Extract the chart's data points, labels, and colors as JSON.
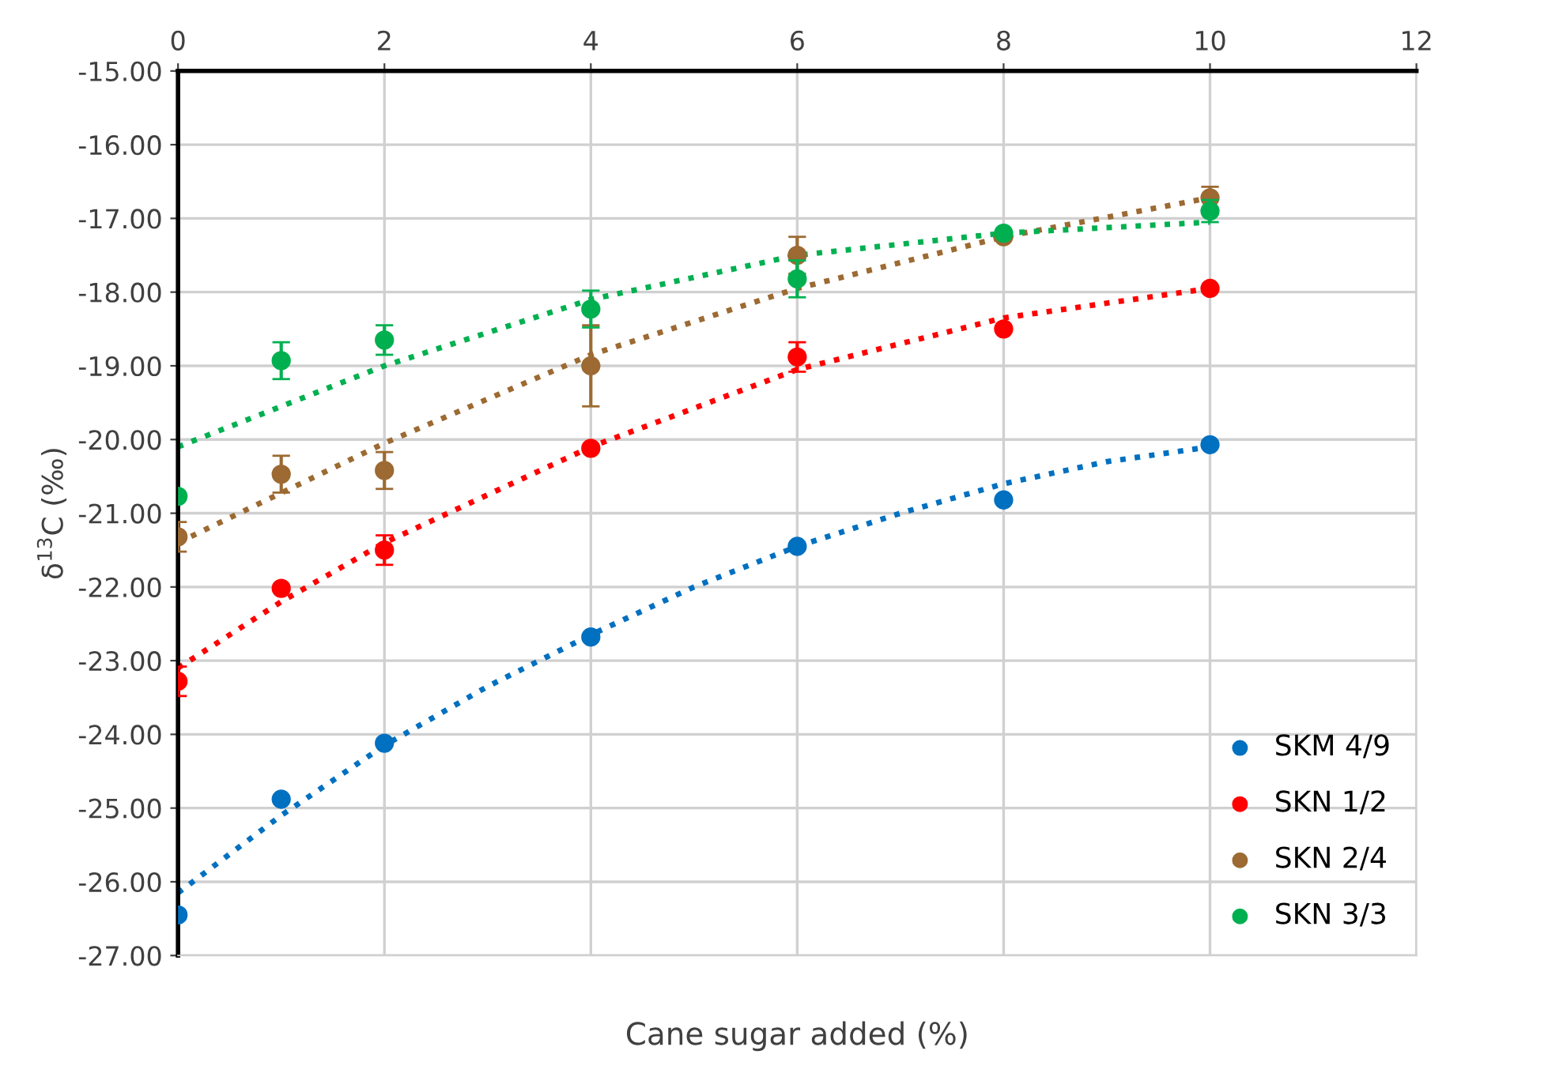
{
  "chart_data": {
    "type": "scatter",
    "xlabel": "Cane sugar added (%)",
    "ylabel": "δ$^{13}$C (‰)",
    "xlim": [
      0,
      12
    ],
    "xticks": [
      0,
      2,
      4,
      6,
      8,
      10,
      12
    ],
    "ylim": [
      -27,
      -15
    ],
    "yticks": [
      {
        "value": -27,
        "label": "-27.00"
      },
      {
        "value": -26,
        "label": "-26.00"
      },
      {
        "value": -25,
        "label": "-25.00"
      },
      {
        "value": -24,
        "label": "-24.00"
      },
      {
        "value": -23,
        "label": "-23.00"
      },
      {
        "value": -22,
        "label": "-22.00"
      },
      {
        "value": -21,
        "label": "-21.00"
      },
      {
        "value": -20,
        "label": "-20.00"
      },
      {
        "value": -19,
        "label": "-19.00"
      },
      {
        "value": -18,
        "label": "-18.00"
      },
      {
        "value": -17,
        "label": "-17.00"
      },
      {
        "value": -16,
        "label": "-16.00"
      },
      {
        "value": -15,
        "label": "-15.00"
      }
    ],
    "grid": true,
    "legend": "bottom right",
    "marker": "circle",
    "series": [
      {
        "name": "SKM 4/9",
        "color": "#0070c0",
        "x": [
          0,
          1,
          2,
          4,
          6,
          8,
          10
        ],
        "values": [
          -26.45,
          -24.88,
          -24.12,
          -22.68,
          -21.45,
          -20.82,
          -20.07
        ],
        "errors": [
          null,
          null,
          null,
          null,
          null,
          null,
          null
        ]
      },
      {
        "name": "SKN 1/2",
        "color": "#ff0000",
        "x": [
          0,
          1,
          2,
          4,
          6,
          8,
          10
        ],
        "values": [
          -23.28,
          -22.02,
          -21.5,
          -20.12,
          -18.88,
          -18.5,
          -17.95
        ],
        "errors": [
          0.2,
          null,
          0.2,
          null,
          0.2,
          null,
          null
        ]
      },
      {
        "name": "SKN 2/4",
        "color": "#9c6a32",
        "x": [
          0,
          1,
          2,
          4,
          6,
          8,
          10
        ],
        "values": [
          -21.32,
          -20.47,
          -20.42,
          -19.0,
          -17.5,
          -17.25,
          -16.72
        ],
        "errors": [
          0.2,
          0.25,
          0.25,
          0.55,
          0.25,
          null,
          0.15
        ]
      },
      {
        "name": "SKN 3/3",
        "color": "#00b050",
        "x": [
          0,
          1,
          2,
          4,
          6,
          8,
          10
        ],
        "values": [
          -20.77,
          -18.93,
          -18.65,
          -18.23,
          -17.82,
          -17.2,
          -16.9
        ],
        "errors": [
          null,
          0.25,
          0.2,
          0.25,
          0.25,
          null,
          0.15
        ]
      },
      {
        "type": "line",
        "line_style": "dotted",
        "marker": "none",
        "color": "#0070c0",
        "x": [
          0,
          1,
          2,
          3,
          4,
          5,
          6,
          7,
          8,
          9,
          10
        ],
        "values": [
          -26.15,
          -25.1,
          -24.15,
          -23.35,
          -22.65,
          -22.0,
          -21.45,
          -21.0,
          -20.6,
          -20.3,
          -20.1
        ]
      },
      {
        "type": "line",
        "line_style": "dotted",
        "marker": "none",
        "color": "#ff0000",
        "x": [
          0,
          1,
          2,
          4,
          6,
          8,
          10
        ],
        "values": [
          -23.1,
          -22.2,
          -21.4,
          -20.1,
          -19.05,
          -18.35,
          -17.95
        ]
      },
      {
        "type": "line",
        "line_style": "dotted",
        "marker": "none",
        "color": "#9c6a32",
        "x": [
          0,
          2,
          4,
          6,
          8,
          10
        ],
        "values": [
          -21.4,
          -20.05,
          -18.85,
          -17.95,
          -17.25,
          -16.72
        ]
      },
      {
        "type": "line",
        "line_style": "dotted",
        "marker": "none",
        "color": "#00b050",
        "x": [
          0,
          2,
          4,
          6,
          8,
          10
        ],
        "values": [
          -20.1,
          -19.0,
          -18.1,
          -17.5,
          -17.2,
          -17.05
        ]
      }
    ]
  }
}
